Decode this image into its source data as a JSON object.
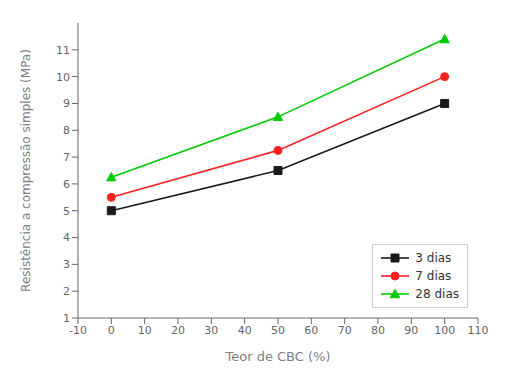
{
  "chart_data": {
    "type": "line",
    "x": [
      0,
      50,
      100
    ],
    "series": [
      {
        "name": "3 dias",
        "color": "#1a1a1a",
        "marker": "square",
        "line_style": "solid",
        "values": [
          5.0,
          6.5,
          9.0
        ]
      },
      {
        "name": "7 dias",
        "color": "#ff2020",
        "marker": "circle",
        "line_style": "solid",
        "values": [
          5.5,
          7.25,
          10.0
        ]
      },
      {
        "name": "28 dias",
        "color": "#00cc00",
        "marker": "triangle",
        "line_style": "solid",
        "values": [
          6.25,
          8.5,
          11.4
        ]
      }
    ],
    "xlabel": "Teor de CBC (%)",
    "ylabel": "Resistência a compressão simples (MPa)",
    "xlim": [
      -10,
      110
    ],
    "ylim": [
      1,
      12
    ],
    "xticks": [
      -10,
      0,
      10,
      20,
      30,
      40,
      50,
      60,
      70,
      80,
      90,
      100,
      110
    ],
    "yticks": [
      1,
      2,
      3,
      4,
      5,
      6,
      7,
      8,
      9,
      10,
      11
    ],
    "legend": "lower right",
    "grid": false
  }
}
